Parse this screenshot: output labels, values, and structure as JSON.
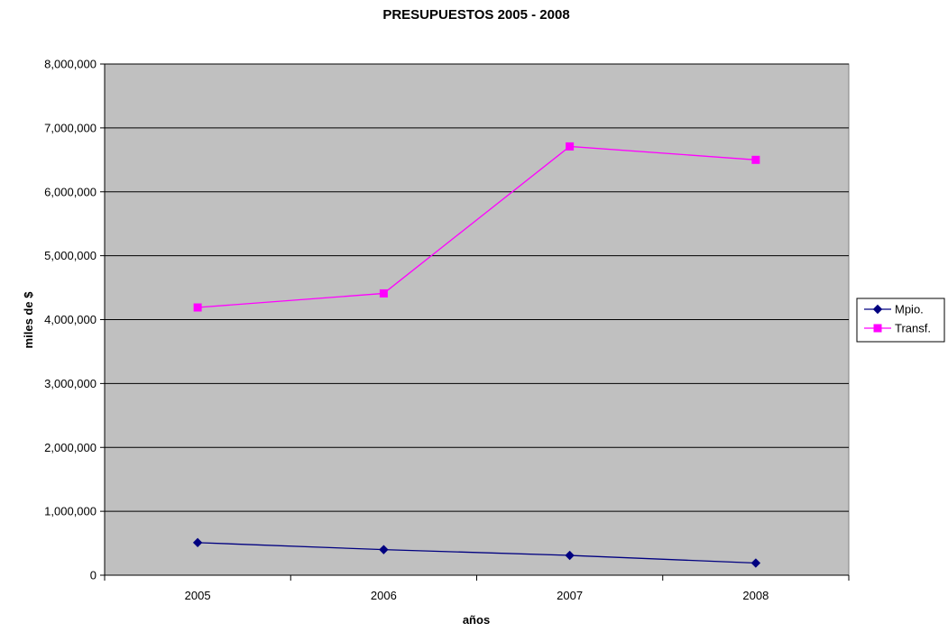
{
  "chart_data": {
    "type": "line",
    "title": "PRESUPUESTOS 2005 - 2008",
    "xlabel": "años",
    "ylabel": "miles de $",
    "categories": [
      "2005",
      "2006",
      "2007",
      "2008"
    ],
    "ylim": [
      0,
      8000000
    ],
    "yticks": [
      "0",
      "1,000,000",
      "2,000,000",
      "3,000,000",
      "4,000,000",
      "5,000,000",
      "6,000,000",
      "7,000,000",
      "8,000,000"
    ],
    "grid": true,
    "legend": "right",
    "plot_background": "#C0C0C0",
    "series": [
      {
        "name": "Mpio.",
        "values": [
          510000,
          400000,
          310000,
          190000
        ],
        "color": "#000080",
        "marker": "diamond"
      },
      {
        "name": "Transf.",
        "values": [
          4190000,
          4410000,
          6710000,
          6500000
        ],
        "color": "#FF00FF",
        "marker": "square"
      }
    ]
  }
}
